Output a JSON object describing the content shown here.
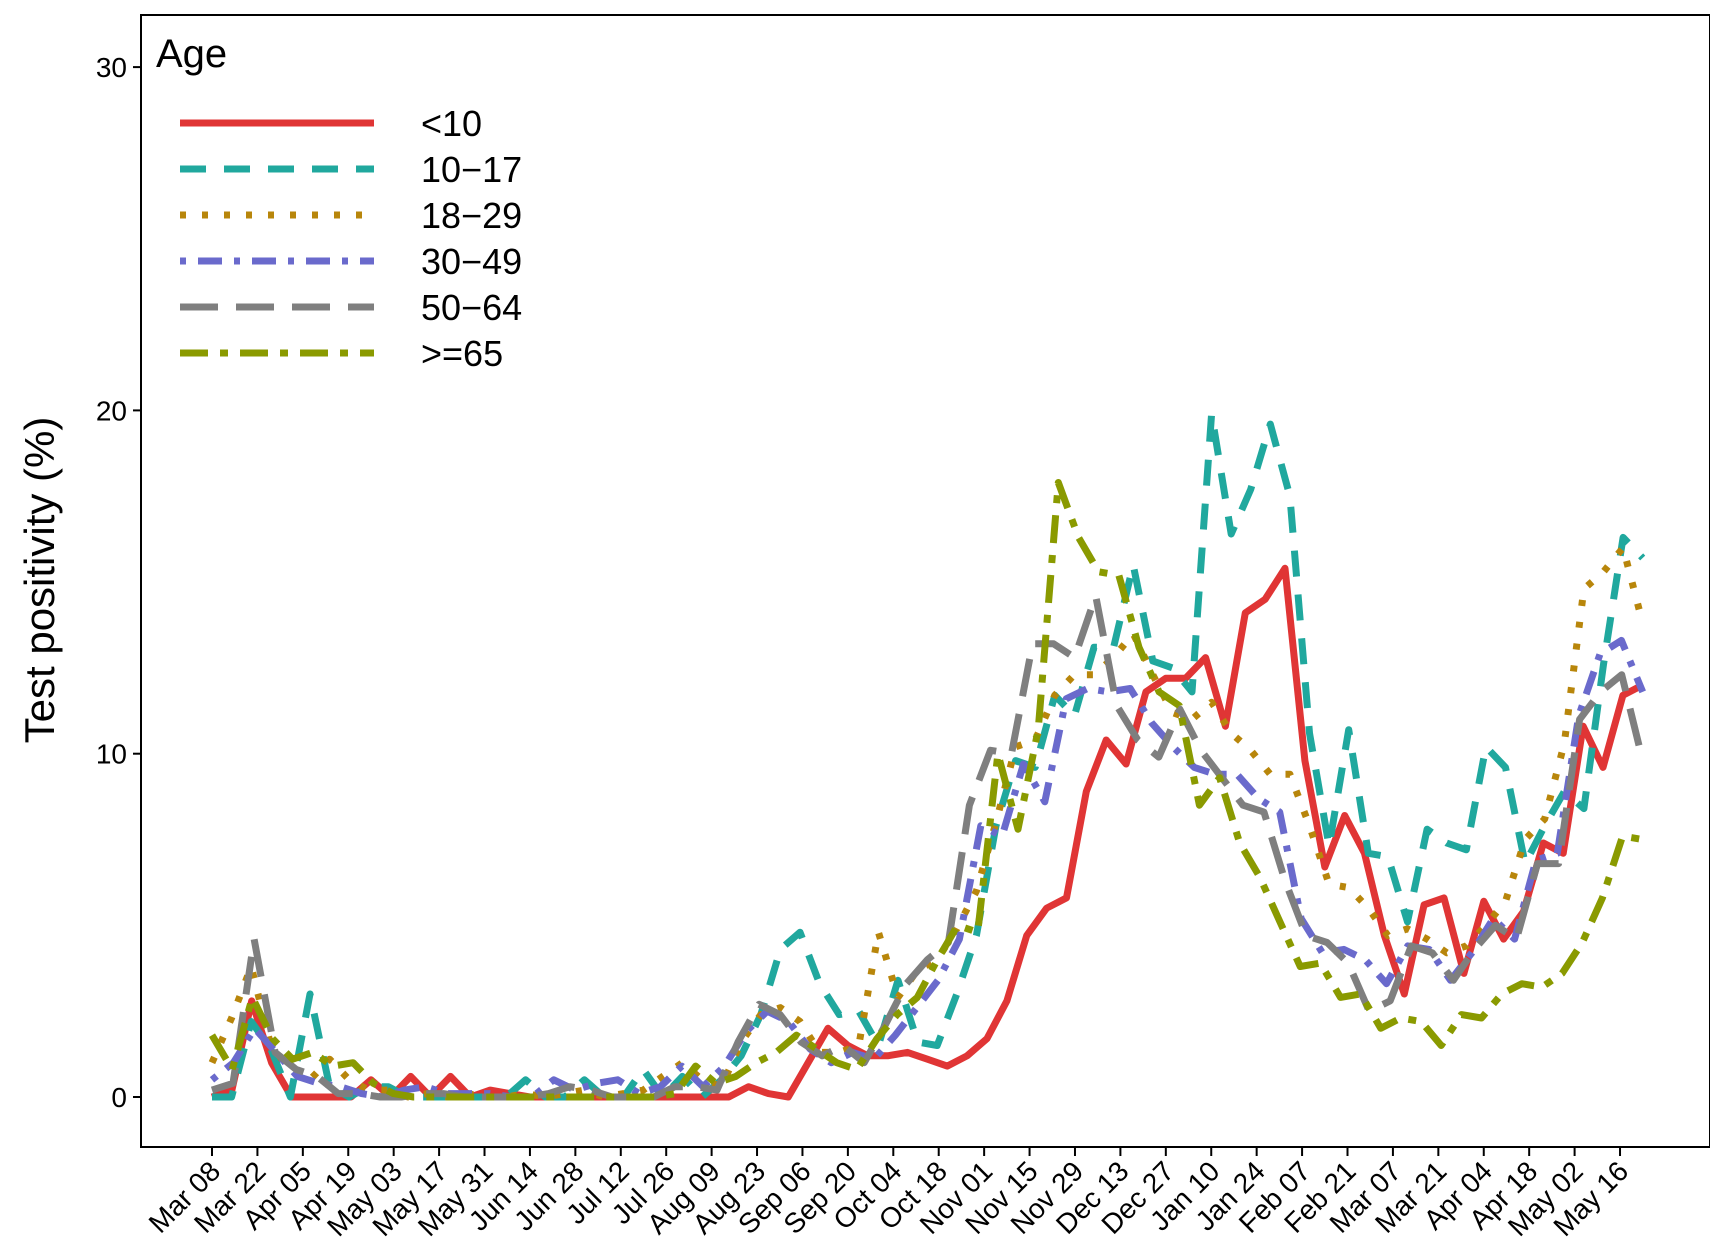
{
  "chart_data": {
    "type": "line",
    "title": "",
    "xlabel": "",
    "ylabel": "Test positivity (%)",
    "ylim": [
      -1.5,
      31.5
    ],
    "y_ticks": [
      0,
      10,
      20,
      30
    ],
    "grid": false,
    "legend": {
      "title": "Age",
      "placement": "top-left"
    },
    "x_tick_labels": [
      "Mar 08",
      "Mar 22",
      "Apr 05",
      "Apr 19",
      "May 03",
      "May 17",
      "May 31",
      "Jun 14",
      "Jun 28",
      "Jul 12",
      "Jul 26",
      "Aug 09",
      "Aug 23",
      "Sep 06",
      "Sep 20",
      "Oct 04",
      "Oct 18",
      "Nov 01",
      "Nov 15",
      "Nov 29",
      "Dec 13",
      "Dec 27",
      "Jan 10",
      "Jan 24",
      "Feb 07",
      "Feb 21",
      "Mar 07",
      "Mar 21",
      "Apr 04",
      "Apr 18",
      "May 02",
      "May 16"
    ],
    "x_tick_positions": [
      0,
      2,
      4,
      6,
      8,
      10,
      12,
      14,
      16,
      18,
      20,
      22,
      24,
      26,
      28,
      30,
      32,
      34,
      36,
      38,
      40,
      42,
      44,
      46,
      48,
      50,
      52,
      54,
      56,
      58,
      60,
      62
    ],
    "x_week_range": [
      0,
      63
    ],
    "series": [
      {
        "name": "<10",
        "color": "#e03535",
        "dash": "solid",
        "values": [
          0,
          0.2,
          2.8,
          1,
          0,
          0,
          0,
          0,
          0.5,
          0,
          0.6,
          0,
          0.6,
          0,
          0.2,
          0.1,
          0,
          0,
          0,
          0,
          0,
          0,
          0,
          0,
          0,
          0,
          0,
          0.3,
          0.1,
          0,
          1,
          2,
          1.5,
          1.2,
          1.2,
          1.3,
          1.1,
          0.9,
          1.2,
          1.7,
          2.8,
          4.7,
          5.5,
          5.8,
          8.9,
          10.4,
          9.7,
          11.8,
          12.2,
          12.2,
          12.8,
          10.8,
          14.1,
          14.5,
          15.4,
          9.8,
          6.7,
          8.2,
          7.1,
          4.7,
          3,
          5.6,
          5.8,
          3.6,
          5.7,
          4.6,
          5.4,
          7.4,
          7.1,
          10.8,
          9.6,
          11.7,
          12
        ]
      },
      {
        "name": "10−17",
        "color": "#20a89e",
        "dash": "dashed",
        "values": [
          0,
          0,
          2.2,
          1.4,
          0,
          3,
          0.3,
          0,
          0.3,
          0.3,
          0,
          0,
          0,
          0,
          0,
          0,
          0.5,
          0,
          0,
          0.5,
          0,
          0,
          0.8,
          0,
          0.6,
          0,
          0.5,
          1.2,
          2.4,
          4.3,
          4.8,
          3.3,
          2.4,
          2.5,
          1.5,
          3.4,
          1.6,
          1.5,
          3,
          4.7,
          7.9,
          9.8,
          9.6,
          11.7,
          11.1,
          13.1,
          13.1,
          15.5,
          12.7,
          12.5,
          11.8,
          19.9,
          16.4,
          17.7,
          19.6,
          17.5,
          10.6,
          7.3,
          10.7,
          7.1,
          7,
          5.1,
          7.8,
          7.4,
          7.2,
          10.2,
          9.6,
          6.8,
          7.9,
          8.9,
          8.4,
          12.6,
          16.3,
          15.7
        ]
      },
      {
        "name": "18−29",
        "color": "#b8860b",
        "dash": "dotted",
        "values": [
          1,
          2.3,
          3.8,
          1.5,
          0.8,
          0.5,
          1.1,
          0.5,
          0.2,
          0.2,
          0,
          0.1,
          0,
          0.1,
          0,
          0,
          0.1,
          0,
          0.1,
          0.2,
          0,
          0.1,
          0.2,
          0.6,
          1,
          0.5,
          0.3,
          1.6,
          2.4,
          2.6,
          2.2,
          1.3,
          1.3,
          1.5,
          4.8,
          2.9,
          3.7,
          4,
          4.9,
          6,
          8,
          10.2,
          10.4,
          11.7,
          12.3,
          12.3,
          12.8,
          13.5,
          12.3,
          11.2,
          11,
          11.5,
          10.6,
          10.1,
          9.4,
          9.4,
          7.9,
          6.2,
          6.1,
          5.5,
          4.7,
          4.9,
          4.6,
          4.2,
          4.4,
          5,
          5.7,
          7.5,
          8.1,
          10.3,
          14.8,
          15.3,
          16,
          13.8
        ]
      },
      {
        "name": "30−49",
        "color": "#6a6acc",
        "dash": "dotdash",
        "values": [
          0.5,
          1,
          2,
          1.3,
          0.6,
          0.4,
          0.3,
          0.1,
          0,
          0.2,
          0.3,
          0.1,
          0.1,
          0.1,
          0,
          0,
          0.5,
          0.2,
          0.4,
          0.5,
          0.1,
          0.3,
          0.9,
          0.3,
          0.9,
          1.9,
          2.5,
          2.2,
          1.4,
          1,
          1.3,
          1.1,
          1.8,
          2.6,
          3.4,
          4.6,
          7.9,
          7.6,
          9.7,
          8.6,
          11.6,
          11.9,
          11.8,
          11.9,
          10.9,
          10.2,
          9.6,
          9.4,
          9.4,
          8.7,
          8.3,
          5.2,
          4.2,
          4.3,
          4,
          3.3,
          4.4,
          4.3,
          3.4,
          4.2,
          5.2,
          4.6,
          6.9,
          7.1,
          11.1,
          12.9,
          13.3,
          11.8
        ]
      },
      {
        "name": "50−64",
        "color": "#7f7f7f",
        "dash": "longdash",
        "values": [
          0.2,
          0.4,
          4.6,
          1.3,
          0.8,
          0.6,
          0.1,
          0.1,
          0,
          0,
          0.1,
          0.1,
          0,
          0,
          0,
          0,
          0.1,
          0.3,
          0.2,
          0,
          0,
          0,
          0.3,
          0.3,
          0.2,
          1.6,
          2.7,
          2.4,
          1.6,
          1.2,
          1.5,
          1,
          2.1,
          3.3,
          4,
          4.5,
          8.5,
          10.1,
          10,
          13.2,
          13.2,
          12.8,
          14.6,
          11.4,
          10.4,
          9.9,
          11.3,
          10.1,
          9.3,
          8.5,
          8.3,
          6.3,
          4.7,
          4.5,
          3.9,
          2.5,
          2.8,
          4.4,
          4.2,
          3.4,
          4.3,
          5,
          4.6,
          6.8,
          6.8,
          11,
          11.8,
          12.3,
          9.8
        ]
      },
      {
        "name": ">=65",
        "color": "#8a9a00",
        "dash": "longdotdash",
        "values": [
          1.8,
          0.8,
          2.9,
          1.7,
          1.1,
          1.3,
          0.9,
          1,
          0.4,
          0.1,
          0,
          0,
          0,
          0,
          0,
          0,
          0,
          0,
          0,
          0,
          0,
          0,
          0,
          0.1,
          0.9,
          0.4,
          0.6,
          1,
          1.3,
          1.8,
          1.4,
          1,
          0.8,
          1.7,
          2.4,
          2.9,
          4,
          5,
          4.8,
          10,
          7.8,
          10.7,
          17.9,
          16.3,
          15.3,
          15.2,
          13.1,
          11.8,
          11.4,
          8.5,
          9.3,
          7.4,
          6.4,
          5.1,
          3.8,
          3.9,
          2.9,
          3,
          2,
          2.3,
          2.2,
          1.5,
          2.4,
          2.3,
          3,
          3.3,
          3.2,
          3.6,
          4.5,
          5.8,
          7.6,
          7.5
        ]
      }
    ]
  }
}
